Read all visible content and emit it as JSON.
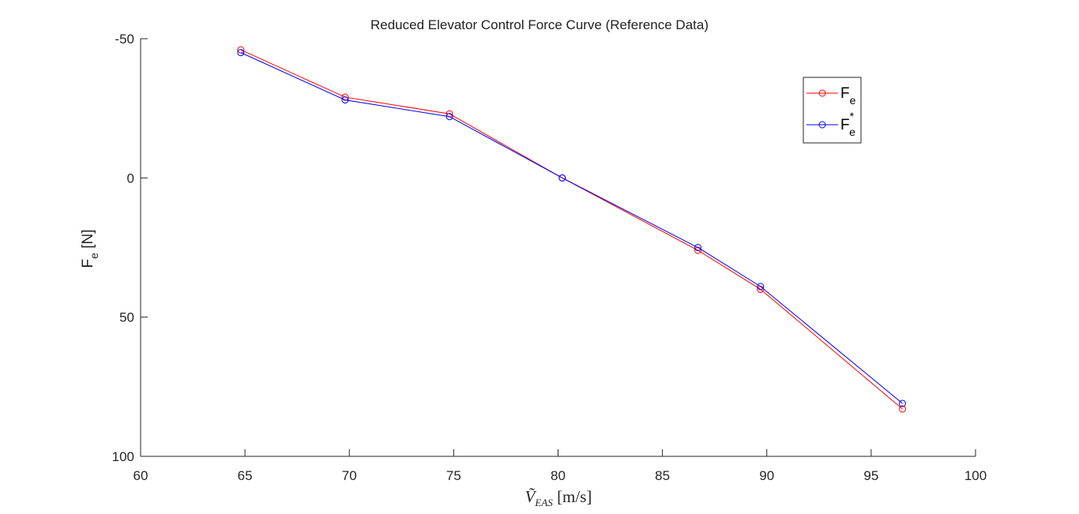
{
  "chart_data": {
    "type": "line",
    "title": "Reduced Elevator Control Force Curve (Reference Data)",
    "xlabel": "Ṽ_EAS [m/s]",
    "xlabel_parts": {
      "base": "Ṽ",
      "sub": "EAS",
      "unit": " [m/s]"
    },
    "ylabel": "F_e [N]",
    "ylabel_parts": {
      "base": "F",
      "sub": "e",
      "unit": " [N]"
    },
    "xlim": [
      60,
      100
    ],
    "ylim": [
      -50,
      100
    ],
    "y_reversed": true,
    "xticks": [
      60,
      65,
      70,
      75,
      80,
      85,
      90,
      95,
      100
    ],
    "yticks": [
      -50,
      0,
      50,
      100
    ],
    "grid": false,
    "legend_position": "top-right",
    "series": [
      {
        "name": "F_e",
        "label_base": "F",
        "label_sub": "e",
        "label_sup": "",
        "color": "#ff0000",
        "marker": "circle",
        "x": [
          64.8,
          69.8,
          74.8,
          80.2,
          86.7,
          89.7,
          96.5
        ],
        "y": [
          -46,
          -29,
          -23,
          0,
          26,
          40,
          83
        ]
      },
      {
        "name": "F_e*",
        "label_base": "F",
        "label_sub": "e",
        "label_sup": "*",
        "color": "#0000ff",
        "marker": "circle",
        "x": [
          64.8,
          69.8,
          74.8,
          80.2,
          86.7,
          89.7,
          96.5
        ],
        "y": [
          -45,
          -28,
          -22,
          0,
          25,
          39,
          81
        ]
      }
    ]
  }
}
